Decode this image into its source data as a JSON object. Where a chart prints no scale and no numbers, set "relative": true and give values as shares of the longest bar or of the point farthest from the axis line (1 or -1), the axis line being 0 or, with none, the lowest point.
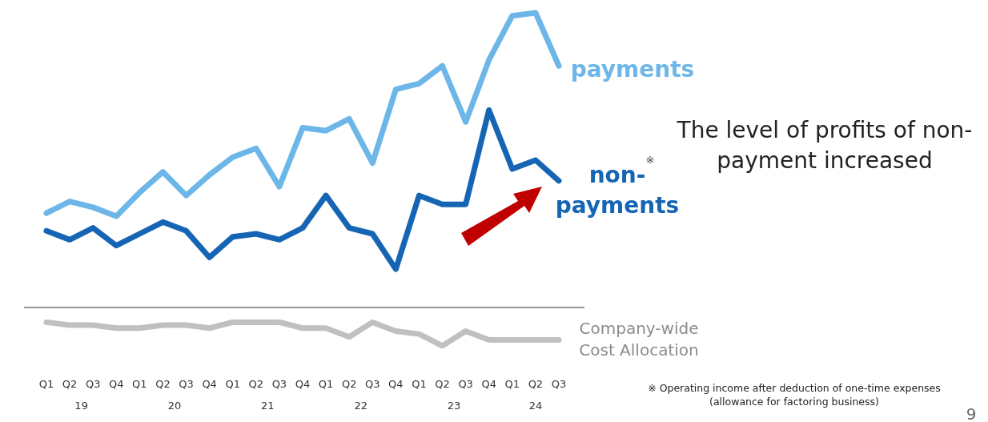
{
  "chart_data": {
    "type": "line",
    "relative": true,
    "categories": [
      "Q1",
      "Q2",
      "Q3",
      "Q4",
      "Q1",
      "Q2",
      "Q3",
      "Q4",
      "Q1",
      "Q2",
      "Q3",
      "Q4",
      "Q1",
      "Q2",
      "Q3",
      "Q4",
      "Q1",
      "Q2",
      "Q3",
      "Q4",
      "Q1",
      "Q2",
      "Q3"
    ],
    "series": [
      {
        "name": "payments",
        "color": "#6cb6e8",
        "values": [
          0.32,
          0.36,
          0.34,
          0.31,
          0.39,
          0.46,
          0.38,
          0.45,
          0.51,
          0.54,
          0.41,
          0.61,
          0.6,
          0.64,
          0.49,
          0.74,
          0.76,
          0.82,
          0.63,
          0.84,
          0.99,
          1,
          0.82
        ]
      },
      {
        "name": "non-payments",
        "color": "#1565b4",
        "values": [
          0.26,
          0.23,
          0.27,
          0.21,
          0.25,
          0.29,
          0.26,
          0.17,
          0.24,
          0.25,
          0.23,
          0.27,
          0.38,
          0.27,
          0.25,
          0.13,
          0.38,
          0.35,
          0.35,
          0.67,
          0.47,
          0.5,
          0.43
        ]
      },
      {
        "name": "Company-wide Cost Allocation",
        "color": "#c0c0c0",
        "values": [
          -0.05,
          -0.06,
          -0.06,
          -0.07,
          -0.07,
          -0.06,
          -0.06,
          -0.07,
          -0.05,
          -0.05,
          -0.05,
          -0.07,
          -0.07,
          -0.1,
          -0.05,
          -0.08,
          -0.09,
          -0.13,
          -0.08,
          -0.11,
          -0.11,
          -0.11,
          -0.11
        ]
      }
    ],
    "annotations": [
      "19",
      "20",
      "21",
      "22",
      "23",
      "24",
      "The level of profits of non-payment increased",
      "※",
      "※ Operating income after deduction of one-time expenses (allowance for factoring business)",
      "9"
    ],
    "grid": false,
    "marker": "none",
    "line_style": "solid"
  }
}
